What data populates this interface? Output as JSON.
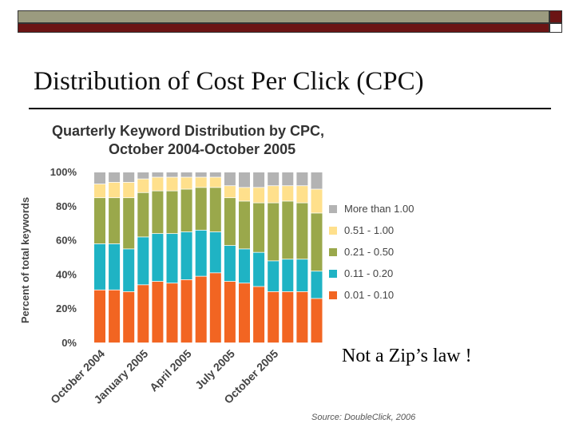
{
  "slide": {
    "title": "Distribution of Cost Per Click (CPC)",
    "caption": "Not a Zip’s law !"
  },
  "chart_data": {
    "type": "bar",
    "stacked": true,
    "title": "Quarterly Keyword Distribution by CPC,",
    "subtitle": "October 2004-October 2005",
    "ylabel": "Percent of total keywords",
    "xlabel": "",
    "ylim": [
      0,
      100
    ],
    "yticks": [
      "0%",
      "20%",
      "40%",
      "60%",
      "80%",
      "100%"
    ],
    "categories": [
      "October 2004",
      "",
      "",
      "January 2005",
      "",
      "",
      "April 2005",
      "",
      "",
      "July 2005",
      "",
      "",
      "October 2005",
      "",
      "",
      ""
    ],
    "series": [
      {
        "name": "0.01 - 0.10",
        "color": "#f26522",
        "values": [
          31,
          31,
          30,
          34,
          36,
          35,
          37,
          39,
          41,
          36,
          35,
          33,
          30,
          30,
          30,
          26
        ]
      },
      {
        "name": "0.11 - 0.20",
        "color": "#1fb3c4",
        "values": [
          27,
          27,
          25,
          28,
          28,
          29,
          28,
          27,
          24,
          21,
          20,
          20,
          18,
          19,
          19,
          16
        ]
      },
      {
        "name": "0.21 - 0.50",
        "color": "#9aa84b",
        "values": [
          27,
          27,
          30,
          26,
          25,
          25,
          25,
          25,
          26,
          28,
          28,
          29,
          34,
          34,
          33,
          34
        ]
      },
      {
        "name": "0.51 - 1.00",
        "color": "#ffe08c",
        "values": [
          8,
          9,
          9,
          8,
          8,
          8,
          7,
          6,
          6,
          7,
          8,
          9,
          10,
          9,
          10,
          14
        ]
      },
      {
        "name": "More than 1.00",
        "color": "#b3b3b3",
        "values": [
          7,
          6,
          6,
          4,
          3,
          3,
          3,
          3,
          3,
          8,
          9,
          9,
          8,
          8,
          8,
          10
        ]
      }
    ],
    "legend_position": "right",
    "grid": false,
    "source": "Source: DoubleClick, 2006"
  }
}
